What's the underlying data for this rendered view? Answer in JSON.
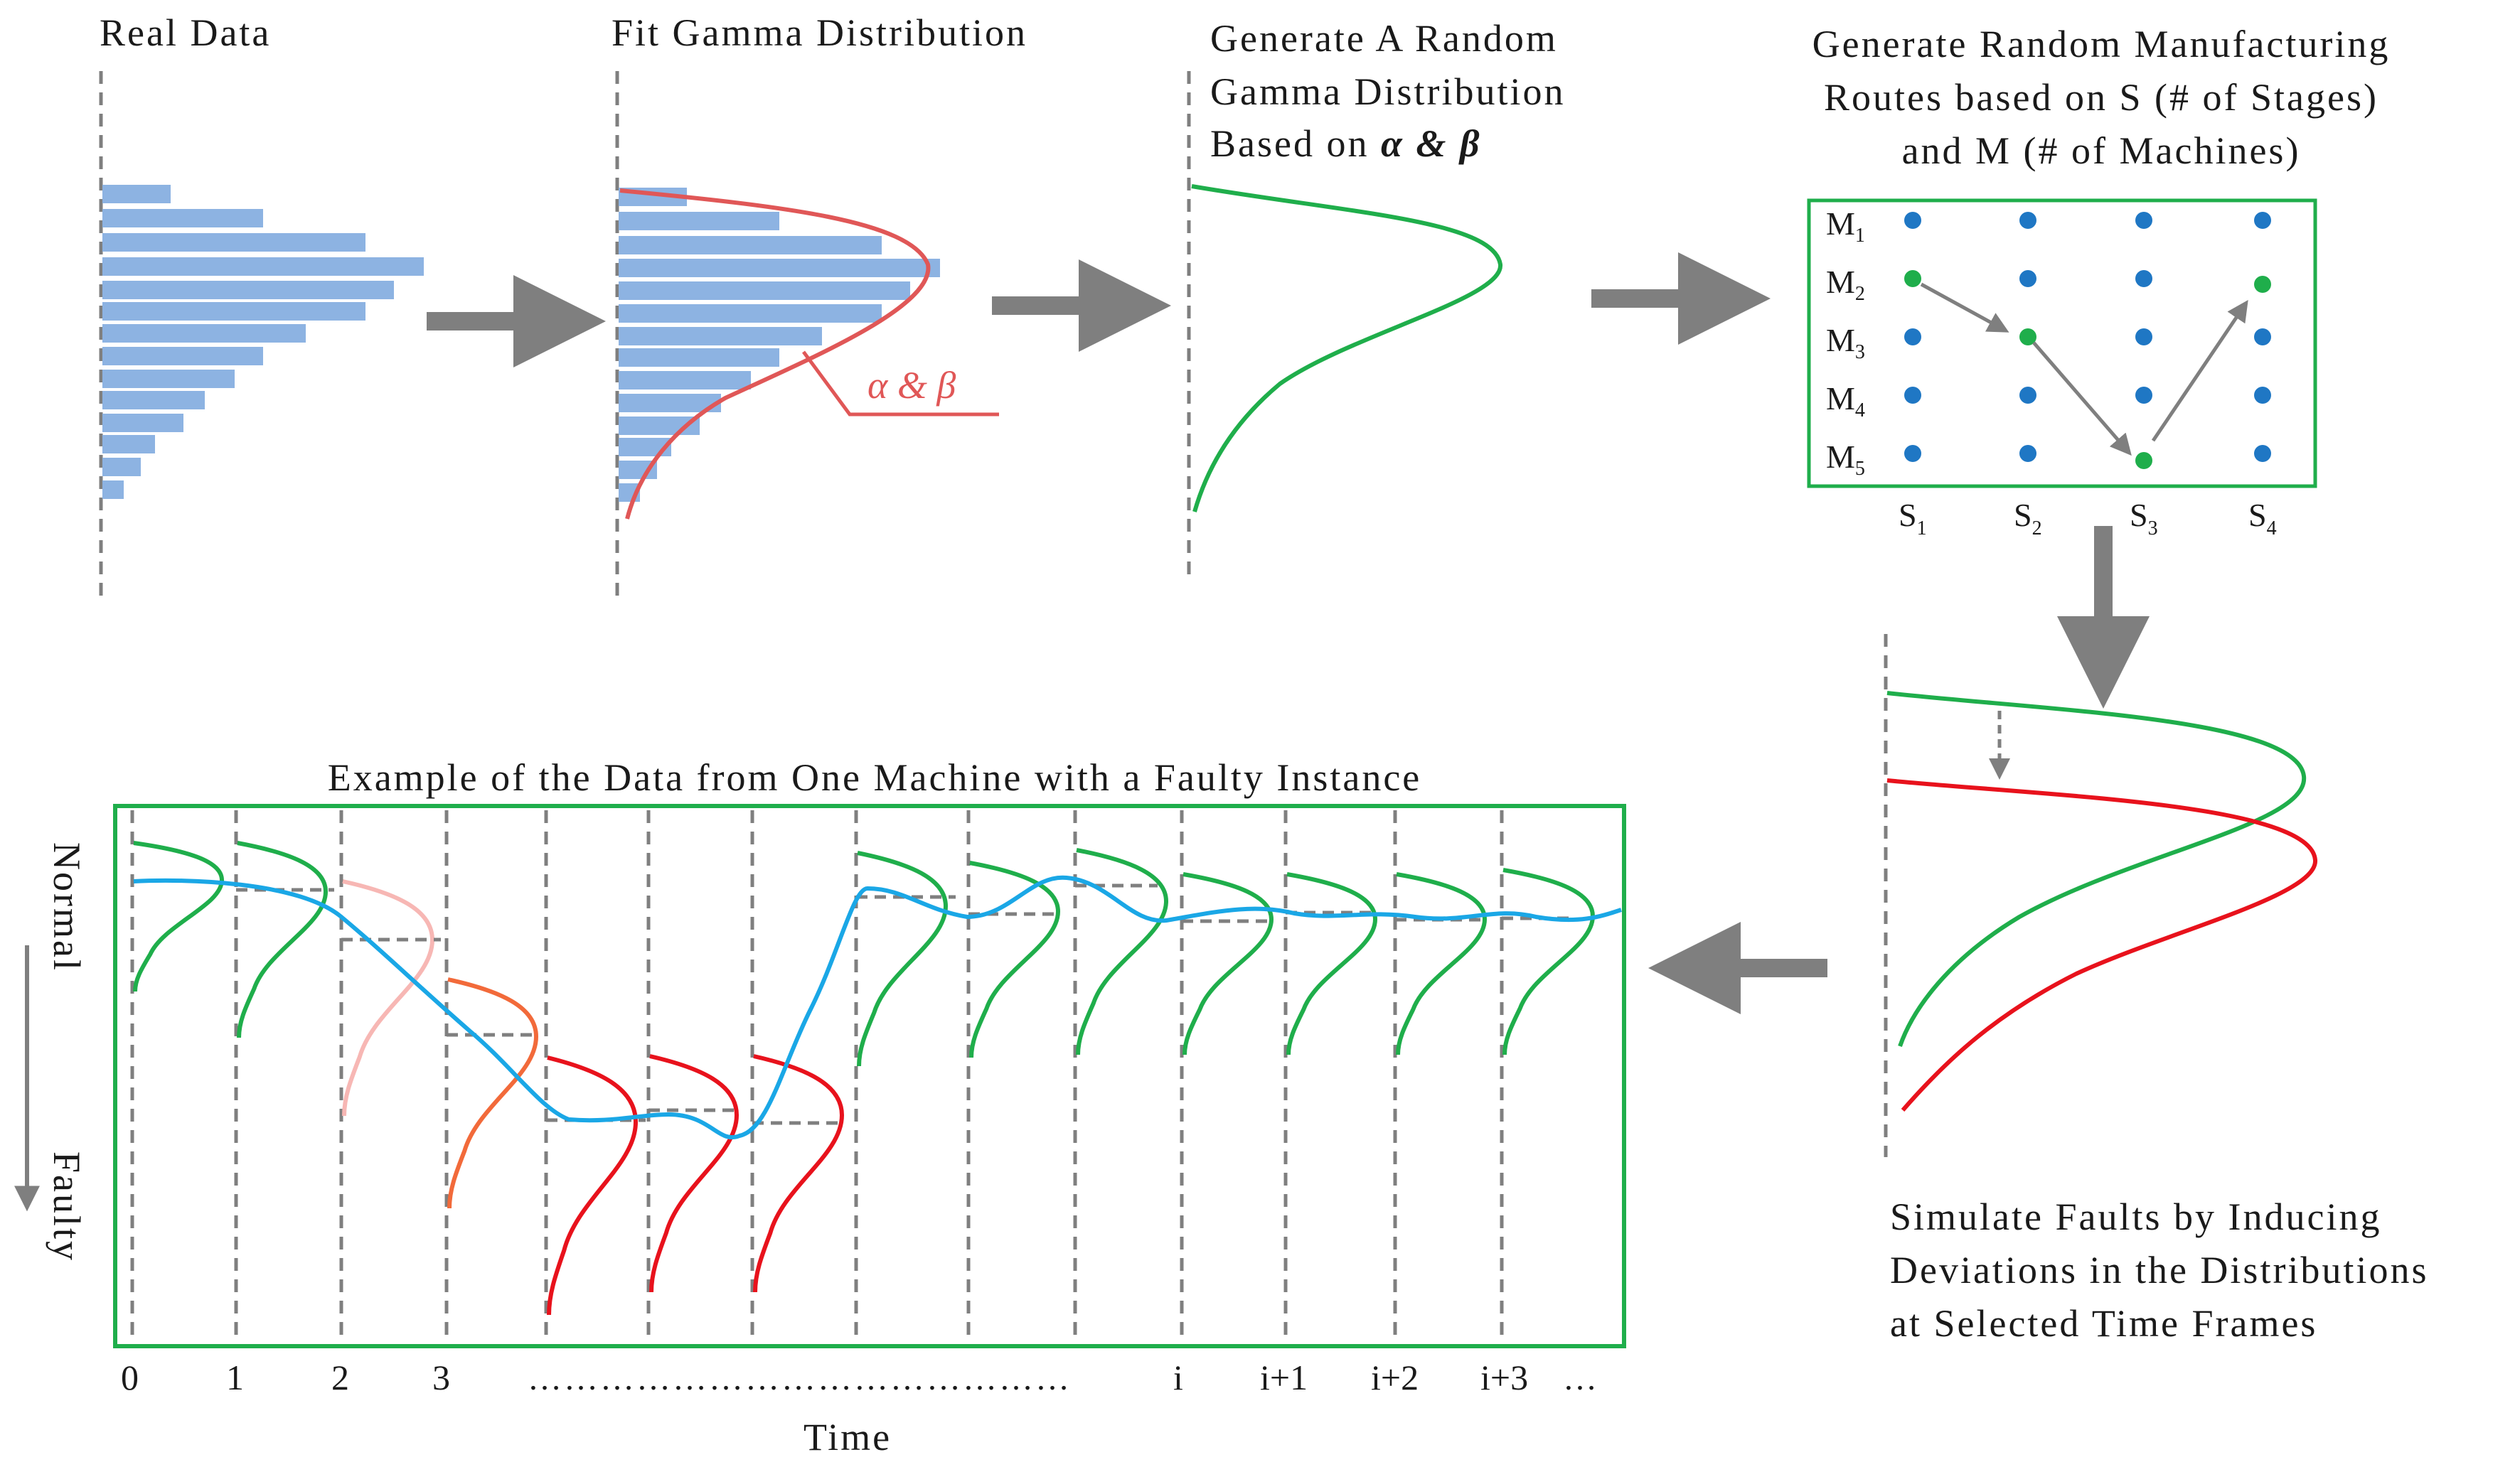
{
  "panels": {
    "real_data": {
      "title": "Real Data"
    },
    "fit_gamma": {
      "title": "Fit Gamma Distribution",
      "param_label": "α & β"
    },
    "random_gamma": {
      "title_lines": [
        "Generate A Random",
        "Gamma Distribution"
      ],
      "title_last_prefix": "Based on ",
      "title_last_params": "α & β"
    },
    "routes": {
      "title_lines": [
        "Generate Random Manufacturing",
        "Routes based on S (# of Stages)",
        "and M (# of Machines)"
      ],
      "machines": [
        {
          "base": "M",
          "sub": "1"
        },
        {
          "base": "M",
          "sub": "2"
        },
        {
          "base": "M",
          "sub": "3"
        },
        {
          "base": "M",
          "sub": "4"
        },
        {
          "base": "M",
          "sub": "5"
        }
      ],
      "stages": [
        {
          "base": "S",
          "sub": "1"
        },
        {
          "base": "S",
          "sub": "2"
        },
        {
          "base": "S",
          "sub": "3"
        },
        {
          "base": "S",
          "sub": "4"
        }
      ]
    },
    "simulate": {
      "caption_lines": [
        "Simulate Faults by Inducing",
        "Deviations in the Distributions",
        "at Selected Time Frames"
      ]
    },
    "example": {
      "title": "Example of the Data from One Machine with a Faulty Instance",
      "y_top_label": "Normal",
      "y_bottom_label": "Faulty",
      "x_ticks": [
        "0",
        "1",
        "2",
        "3",
        "i",
        "i+1",
        "i+2",
        "i+3"
      ],
      "ellipsis_dots": "………………………………………",
      "trailing_dots": "…",
      "x_axis_label": "Time"
    }
  },
  "colors": {
    "bar": "#8db3e2",
    "fit_curve": "#e05757",
    "normal_curve": "#1fae4b",
    "faulty_curve": "#e8121c",
    "arrow": "#7f7f7f",
    "route_dot": "#1f77c4",
    "route_dot_active": "#1fae4b",
    "signal": "#1aa7e6",
    "frame": "#1fae4b"
  }
}
